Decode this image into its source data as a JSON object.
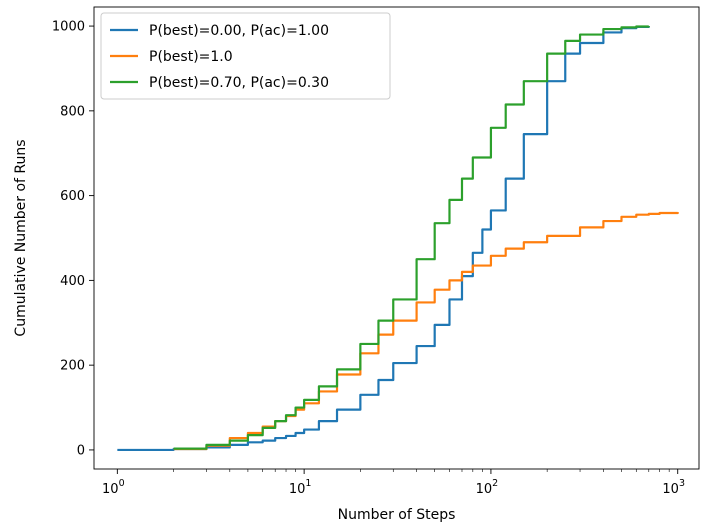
{
  "chart_data": {
    "type": "line",
    "title": "",
    "xlabel": "Number of Steps",
    "ylabel": "Cumulative Number of Runs",
    "xscale": "log",
    "xlim": [
      0.75,
      1300
    ],
    "ylim": [
      -45,
      1045
    ],
    "x_ticks": [
      {
        "value": 1,
        "base": "10",
        "exp": "0"
      },
      {
        "value": 10,
        "base": "10",
        "exp": "1"
      },
      {
        "value": 100,
        "base": "10",
        "exp": "2"
      },
      {
        "value": 1000,
        "base": "10",
        "exp": "3"
      }
    ],
    "y_ticks": [
      0,
      200,
      400,
      600,
      800,
      1000
    ],
    "y_tick_labels": [
      "0",
      "200",
      "400",
      "600",
      "800",
      "1000"
    ],
    "grid": false,
    "legend_position": "top-left",
    "series": [
      {
        "name": "P(best)=0.00, P(ac)=1.00",
        "color": "#1f77b4",
        "x": [
          1,
          2,
          3,
          4,
          5,
          6,
          7,
          8,
          9,
          10,
          12,
          15,
          20,
          25,
          30,
          40,
          50,
          60,
          70,
          80,
          90,
          100,
          120,
          150,
          200,
          250,
          300,
          400,
          500,
          600,
          700
        ],
        "y": [
          0,
          2,
          6,
          12,
          18,
          22,
          28,
          33,
          40,
          48,
          68,
          95,
          130,
          165,
          205,
          245,
          295,
          355,
          410,
          465,
          520,
          565,
          640,
          745,
          870,
          935,
          960,
          985,
          995,
          998,
          1000
        ]
      },
      {
        "name": "P(best)=1.0",
        "color": "#ff7f0e",
        "x": [
          2,
          3,
          4,
          5,
          6,
          7,
          8,
          9,
          10,
          12,
          15,
          20,
          25,
          30,
          40,
          50,
          60,
          70,
          80,
          100,
          120,
          150,
          200,
          300,
          400,
          500,
          600,
          700,
          800,
          1000
        ],
        "y": [
          2,
          10,
          28,
          40,
          55,
          68,
          80,
          95,
          110,
          138,
          178,
          228,
          272,
          305,
          348,
          378,
          400,
          420,
          435,
          458,
          475,
          490,
          505,
          525,
          540,
          550,
          555,
          557,
          559,
          561
        ]
      },
      {
        "name": "P(best)=0.70, P(ac)=0.30",
        "color": "#2ca02c",
        "x": [
          2,
          3,
          4,
          5,
          6,
          7,
          8,
          9,
          10,
          12,
          15,
          20,
          25,
          30,
          40,
          50,
          60,
          70,
          80,
          100,
          120,
          150,
          200,
          250,
          300,
          400,
          500,
          600,
          700
        ],
        "y": [
          3,
          12,
          22,
          35,
          52,
          68,
          82,
          100,
          118,
          150,
          190,
          250,
          305,
          355,
          450,
          535,
          590,
          640,
          690,
          760,
          815,
          870,
          935,
          965,
          980,
          993,
          997,
          999,
          1000
        ]
      }
    ]
  }
}
